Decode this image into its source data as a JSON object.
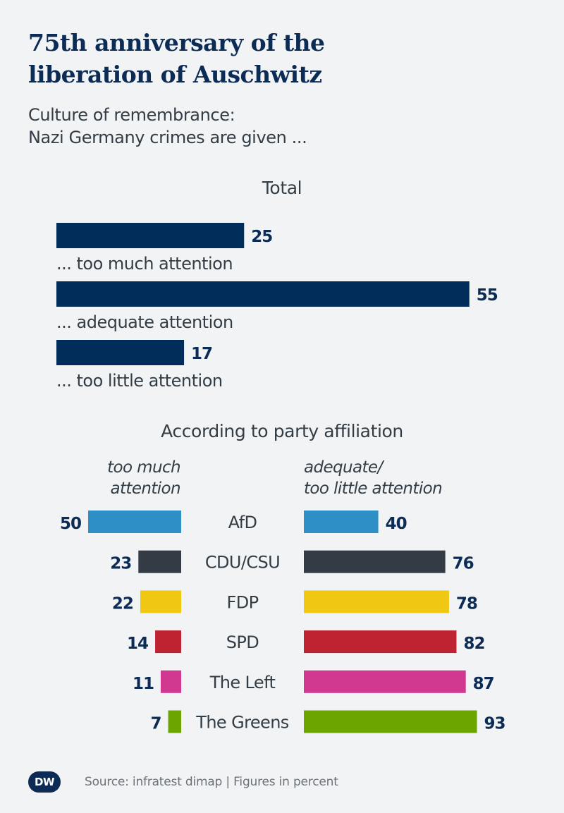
{
  "header": {
    "title_line1": "75th anniversary of the",
    "title_line2": "liberation of Auschwitz",
    "subtitle_line1": "Culture of remembrance:",
    "subtitle_line2": "Nazi Germany crimes are given ..."
  },
  "footer": {
    "logo_text": "DW",
    "source": "Source: infratest dimap | Figures in percent"
  },
  "chart_data": [
    {
      "type": "bar",
      "orientation": "horizontal",
      "title": "Total",
      "categories": [
        "... too much attention",
        "... adequate attention",
        "... too little attention"
      ],
      "values": [
        25,
        55,
        17
      ],
      "unit": "percent",
      "color": "#002d5a"
    },
    {
      "type": "bar",
      "orientation": "diverging-horizontal",
      "title": "According to party affiliation",
      "left_label_line1": "too much",
      "left_label_line2": "attention",
      "right_label_line1": "adequate/",
      "right_label_line2": "too little attention",
      "unit": "percent",
      "categories": [
        "AfD",
        "CDU/CSU",
        "FDP",
        "SPD",
        "The Left",
        "The Greens"
      ],
      "series": [
        {
          "name": "too much attention",
          "values": [
            50,
            23,
            22,
            14,
            11,
            7
          ]
        },
        {
          "name": "adequate/too little attention",
          "values": [
            40,
            76,
            78,
            82,
            87,
            93
          ]
        }
      ],
      "colors": [
        "#2e8fc6",
        "#333c45",
        "#f0c814",
        "#be2332",
        "#d0398f",
        "#6ca400"
      ]
    }
  ],
  "style": {
    "value_color": "#0c2c56",
    "label_color": "#333d46"
  }
}
